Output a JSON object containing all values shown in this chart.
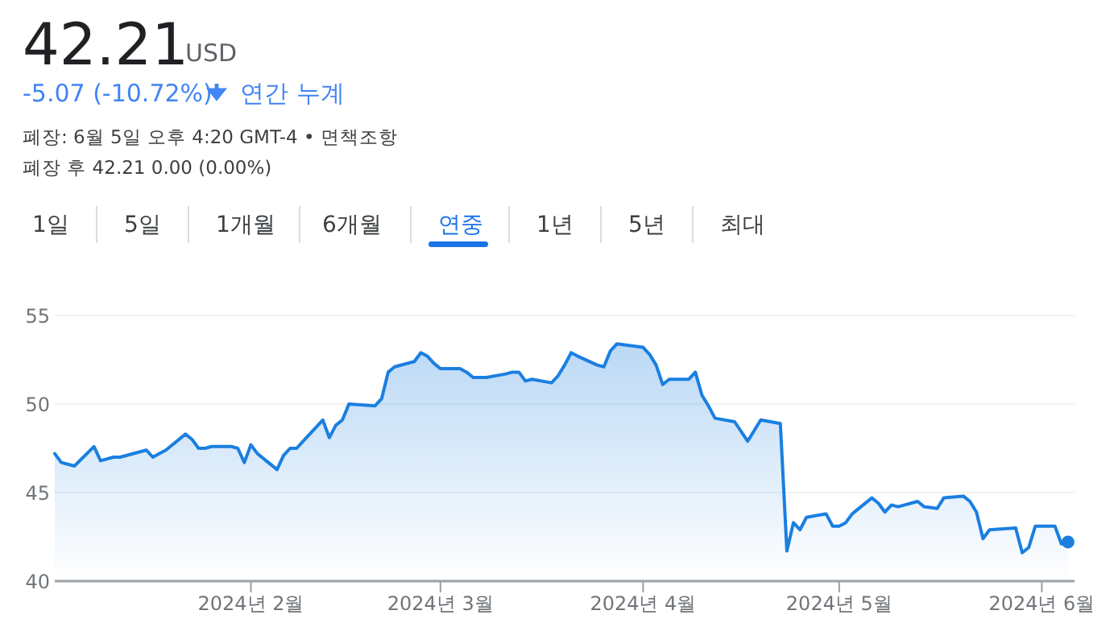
{
  "chart_data": {
    "type": "area",
    "title": "42.21",
    "subtitle": "USD",
    "annotations": [
      "-5.07 (-10.72%)",
      "연간 누계",
      "폐장: 6월 5일 오후 4:20 GMT-4 • 면책조항",
      "폐장 후 42.21 0.00 (0.00%)",
      "1일",
      "5일",
      "1개월",
      "6개월",
      "연중",
      "1년",
      "5년",
      "최대"
    ],
    "x": [
      "2024-01-02",
      "2024-01-03",
      "2024-01-05",
      "2024-01-08",
      "2024-01-09",
      "2024-01-11",
      "2024-01-12",
      "2024-01-16",
      "2024-01-17",
      "2024-01-18",
      "2024-01-19",
      "2024-01-22",
      "2024-01-23",
      "2024-01-24",
      "2024-01-25",
      "2024-01-26",
      "2024-01-29",
      "2024-01-30",
      "2024-01-31",
      "2024-02-01",
      "2024-02-02",
      "2024-02-05",
      "2024-02-06",
      "2024-02-07",
      "2024-02-08",
      "2024-02-09",
      "2024-02-12",
      "2024-02-13",
      "2024-02-14",
      "2024-02-15",
      "2024-02-16",
      "2024-02-20",
      "2024-02-21",
      "2024-02-22",
      "2024-02-23",
      "2024-02-26",
      "2024-02-27",
      "2024-02-28",
      "2024-02-29",
      "2024-03-01",
      "2024-03-04",
      "2024-03-05",
      "2024-03-06",
      "2024-03-08",
      "2024-03-11",
      "2024-03-12",
      "2024-03-13",
      "2024-03-14",
      "2024-03-15",
      "2024-03-18",
      "2024-03-19",
      "2024-03-20",
      "2024-03-21",
      "2024-03-22",
      "2024-03-25",
      "2024-03-26",
      "2024-03-27",
      "2024-03-28",
      "2024-04-01",
      "2024-04-02",
      "2024-04-03",
      "2024-04-04",
      "2024-04-05",
      "2024-04-08",
      "2024-04-09",
      "2024-04-10",
      "2024-04-11",
      "2024-04-12",
      "2024-04-15",
      "2024-04-17",
      "2024-04-18",
      "2024-04-19",
      "2024-04-22",
      "2024-04-23",
      "2024-04-24",
      "2024-04-25",
      "2024-04-26",
      "2024-04-29",
      "2024-04-30",
      "2024-05-01",
      "2024-05-02",
      "2024-05-03",
      "2024-05-06",
      "2024-05-07",
      "2024-05-08",
      "2024-05-09",
      "2024-05-10",
      "2024-05-13",
      "2024-05-14",
      "2024-05-16",
      "2024-05-17",
      "2024-05-20",
      "2024-05-21",
      "2024-05-22",
      "2024-05-23",
      "2024-05-24",
      "2024-05-28",
      "2024-05-29",
      "2024-05-30",
      "2024-05-31",
      "2024-06-03",
      "2024-06-04",
      "2024-06-05"
    ],
    "series": [
      {
        "color": "#1a7fe0",
        "values": [
          47.2,
          46.7,
          46.5,
          47.6,
          46.8,
          47.0,
          47.0,
          47.4,
          47.0,
          47.2,
          47.4,
          48.3,
          48.0,
          47.5,
          47.5,
          47.6,
          47.6,
          47.5,
          46.7,
          47.7,
          47.2,
          46.3,
          47.1,
          47.5,
          47.5,
          47.9,
          49.1,
          48.1,
          48.8,
          49.1,
          50.0,
          49.9,
          50.3,
          51.8,
          52.1,
          52.4,
          52.9,
          52.7,
          52.3,
          52.0,
          52.0,
          51.8,
          51.5,
          51.5,
          51.7,
          51.8,
          51.8,
          51.3,
          51.4,
          51.2,
          51.6,
          52.2,
          52.9,
          52.7,
          52.2,
          52.1,
          53.0,
          53.4,
          53.2,
          52.8,
          52.2,
          51.1,
          51.4,
          51.4,
          51.8,
          50.5,
          49.9,
          49.2,
          49.0,
          47.9,
          48.5,
          49.1,
          48.9,
          41.7,
          43.3,
          42.9,
          43.6,
          43.8,
          43.1,
          43.1,
          43.3,
          43.8,
          44.7,
          44.4,
          43.9,
          44.3,
          44.2,
          44.5,
          44.2,
          44.1,
          44.7,
          44.8,
          44.5,
          43.9,
          42.4,
          42.9,
          43.0,
          41.6,
          41.9,
          43.1,
          43.1,
          42.1,
          42.21
        ]
      }
    ],
    "xlim": [
      "2024-01-02",
      "2024-06-06"
    ],
    "xticks": [
      {
        "value": "2024-02-01",
        "label": "2024년 2월"
      },
      {
        "value": "2024-03-01",
        "label": "2024년 3월"
      },
      {
        "value": "2024-04-01",
        "label": "2024년 4월"
      },
      {
        "value": "2024-05-01",
        "label": "2024년 5월"
      },
      {
        "value": "2024-06-01",
        "label": "2024년 6월"
      }
    ],
    "ylim": [
      40,
      55
    ],
    "yticks": [
      40,
      45,
      50,
      55
    ],
    "grid": "y"
  }
}
